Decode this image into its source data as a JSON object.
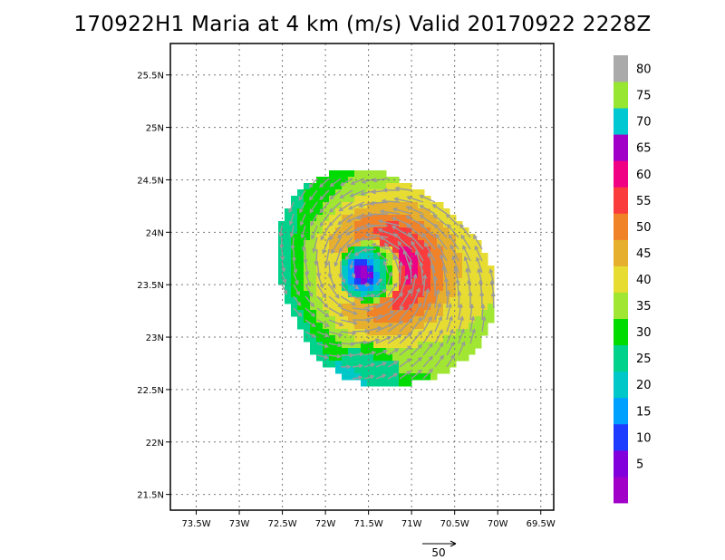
{
  "title": "170922H1 Maria at 4 km (m/s) Valid 20170922 2228Z",
  "map": {
    "lon_range": [
      -73.8,
      -69.35
    ],
    "lat_range": [
      21.35,
      25.8
    ],
    "grid": true,
    "x_ticks": [
      {
        "value": -73.5,
        "label": "73.5W"
      },
      {
        "value": -73.0,
        "label": "73W"
      },
      {
        "value": -72.5,
        "label": "72.5W"
      },
      {
        "value": -72.0,
        "label": "72W"
      },
      {
        "value": -71.5,
        "label": "71.5W"
      },
      {
        "value": -71.0,
        "label": "71W"
      },
      {
        "value": -70.5,
        "label": "70.5W"
      },
      {
        "value": -70.0,
        "label": "70W"
      },
      {
        "value": -69.5,
        "label": "69.5W"
      }
    ],
    "y_ticks": [
      {
        "value": 21.5,
        "label": "21.5N"
      },
      {
        "value": 22.0,
        "label": "22N"
      },
      {
        "value": 22.5,
        "label": "22.5N"
      },
      {
        "value": 23.0,
        "label": "23N"
      },
      {
        "value": 23.5,
        "label": "23.5N"
      },
      {
        "value": 24.0,
        "label": "24N"
      },
      {
        "value": 24.5,
        "label": "24.5N"
      },
      {
        "value": 25.0,
        "label": "25N"
      },
      {
        "value": 25.5,
        "label": "25.5N"
      }
    ],
    "storm_center": {
      "lon": -71.48,
      "lat": 23.62
    }
  },
  "colorbar": {
    "levels": [
      {
        "label": "",
        "color": "#a000c8"
      },
      {
        "label": "5",
        "color": "#8200dc"
      },
      {
        "label": "10",
        "color": "#1e3cff"
      },
      {
        "label": "15",
        "color": "#00a0ff"
      },
      {
        "label": "20",
        "color": "#00c8c8"
      },
      {
        "label": "25",
        "color": "#00d28c"
      },
      {
        "label": "30",
        "color": "#00dc00"
      },
      {
        "label": "35",
        "color": "#a0e632"
      },
      {
        "label": "40",
        "color": "#e6dc32"
      },
      {
        "label": "45",
        "color": "#e6af2d"
      },
      {
        "label": "50",
        "color": "#f08228"
      },
      {
        "label": "55",
        "color": "#fa3c3c"
      },
      {
        "label": "60",
        "color": "#f00082"
      },
      {
        "label": "65",
        "color": "#a000c8"
      },
      {
        "label": "70",
        "color": "#00c8d2"
      },
      {
        "label": "75",
        "color": "#96e632"
      },
      {
        "label": "80",
        "color": "#aaaaaa"
      }
    ]
  },
  "reference_vector": {
    "label": "50",
    "units": "m/s"
  }
}
